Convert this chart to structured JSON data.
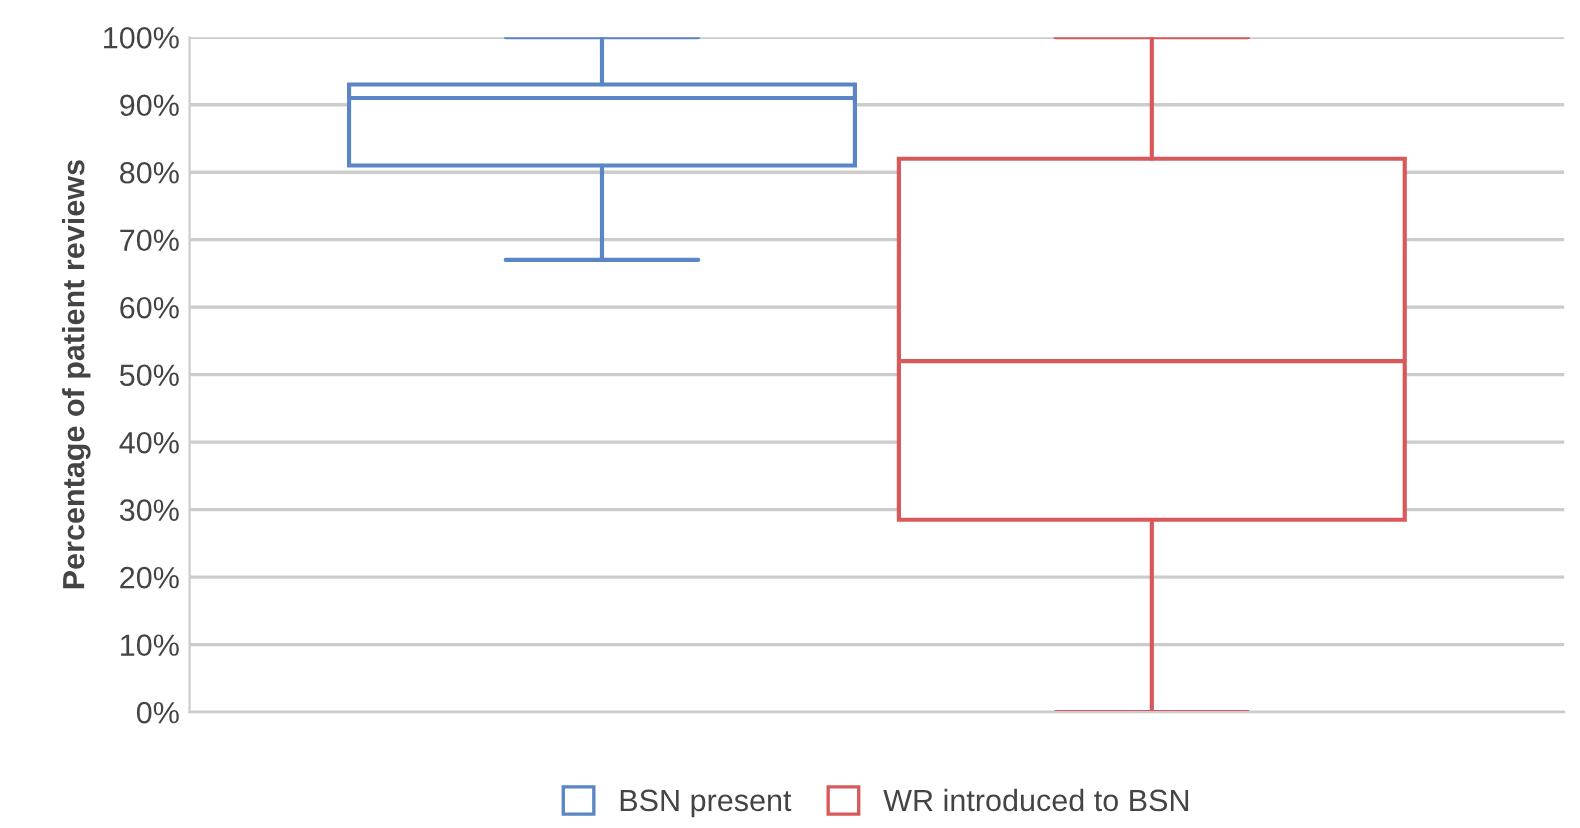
{
  "chart_data": {
    "type": "box",
    "categories": [
      null
    ],
    "ylabel": "Percentage of patient reviews",
    "series": [
      {
        "name": "BSN present",
        "color": "#5b86c5",
        "boxes": [
          {
            "low": 67,
            "q1": 81,
            "median": 91,
            "q3": 93,
            "high": 100
          }
        ]
      },
      {
        "name": "WR introduced to BSN",
        "color": "#d9595a",
        "boxes": [
          {
            "low": 0,
            "q1": 28.5,
            "median": 52,
            "q3": 82,
            "high": 100
          }
        ]
      }
    ],
    "ylim": [
      0,
      100
    ],
    "yticks": [
      {
        "value": 0,
        "label": "0%"
      },
      {
        "value": 10,
        "label": "10%"
      },
      {
        "value": 20,
        "label": "20%"
      },
      {
        "value": 30,
        "label": "30%"
      },
      {
        "value": 40,
        "label": "40%"
      },
      {
        "value": 50,
        "label": "50%"
      },
      {
        "value": 60,
        "label": "60%"
      },
      {
        "value": 70,
        "label": "70%"
      },
      {
        "value": 80,
        "label": "80%"
      },
      {
        "value": 90,
        "label": "90%"
      },
      {
        "value": 100,
        "label": "100%"
      }
    ],
    "grid": "y",
    "legend": "bottom"
  }
}
